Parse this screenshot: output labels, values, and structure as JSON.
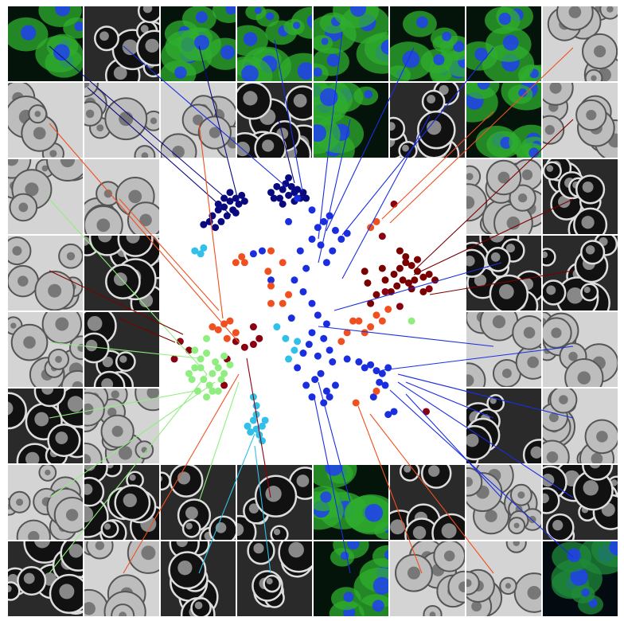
{
  "chart_data": {
    "type": "scatter",
    "xlim": [
      0,
      100
    ],
    "ylim": [
      0,
      100
    ],
    "series": [
      {
        "color": "#0a0a80",
        "x": [
          16,
          18,
          20,
          22,
          24,
          23,
          19,
          21,
          25,
          26,
          17,
          15,
          22,
          20,
          24,
          27,
          13,
          18,
          36,
          38,
          40,
          42,
          44,
          46,
          41,
          39,
          43,
          45,
          47,
          37,
          40,
          44,
          48,
          42
        ],
        "values": [
          82,
          84,
          85,
          87,
          88,
          84,
          80,
          82,
          86,
          89,
          78,
          80,
          90,
          88,
          83,
          87,
          79,
          86,
          90,
          92,
          91,
          89,
          90,
          88,
          93,
          88,
          92,
          91,
          90,
          88,
          86,
          87,
          88,
          95
        ]
      },
      {
        "color": "#1a2ee0",
        "x": [
          45,
          50,
          52,
          54,
          56,
          58,
          50,
          53,
          57,
          60,
          62,
          55,
          48,
          46,
          44,
          47,
          50,
          52,
          55,
          50,
          54,
          49,
          56,
          52,
          57,
          53,
          55,
          51,
          58,
          54,
          50,
          56,
          48,
          45,
          47,
          43,
          62,
          66,
          68,
          70,
          72,
          74,
          76,
          73,
          75,
          71,
          76,
          78,
          36,
          33,
          30,
          42
        ],
        "values": [
          88,
          84,
          78,
          80,
          82,
          77,
          74,
          72,
          70,
          74,
          76,
          66,
          64,
          70,
          60,
          56,
          52,
          48,
          45,
          42,
          40,
          38,
          36,
          34,
          32,
          28,
          22,
          26,
          24,
          18,
          20,
          20,
          24,
          30,
          35,
          47,
          33,
          32,
          30,
          31,
          29,
          28,
          30,
          25,
          24,
          20,
          14,
          15,
          60,
          70,
          69,
          80
        ]
      },
      {
        "color": "#7a0000",
        "x": [
          78,
          80,
          82,
          84,
          86,
          88,
          81,
          83,
          85,
          79,
          77,
          82,
          86,
          90,
          92,
          75,
          72,
          70,
          84,
          80,
          74,
          88,
          68,
          69
        ],
        "values": [
          62,
          64,
          66,
          65,
          63,
          61,
          60,
          59,
          60,
          58,
          56,
          68,
          67,
          62,
          60,
          60,
          55,
          52,
          57,
          70,
          64,
          56,
          63,
          59
        ]
      },
      {
        "color": "#f05020",
        "x": [
          18,
          20,
          22,
          24,
          16,
          21,
          35,
          27,
          24,
          26,
          36,
          40,
          36,
          42,
          40,
          70,
          72,
          68,
          66,
          72,
          76,
          70,
          62,
          64,
          74,
          60,
          72,
          65,
          36
        ],
        "values": [
          43,
          45,
          46,
          42,
          44,
          40,
          63,
          66,
          66,
          68,
          70,
          66,
          58,
          55,
          52,
          78,
          80,
          42,
          46,
          48,
          50,
          44,
          42,
          46,
          46,
          39,
          22,
          18,
          52
        ]
      },
      {
        "color": "#8b0010",
        "x": [
          5,
          8,
          3,
          20,
          27,
          30,
          24,
          32,
          75,
          90,
          80,
          21,
          89,
          74,
          78,
          30
        ],
        "values": [
          39,
          36,
          33,
          24,
          37,
          44,
          39,
          40,
          56,
          57,
          51,
          33,
          15,
          75,
          86,
          38
        ]
      },
      {
        "color": "#90ee80",
        "x": [
          10,
          12,
          14,
          16,
          18,
          13,
          11,
          15,
          17,
          19,
          20,
          8,
          12,
          14,
          16,
          22,
          10,
          14,
          20,
          18,
          9,
          84
        ],
        "values": [
          30,
          33,
          35,
          28,
          30,
          26,
          22,
          24,
          32,
          26,
          28,
          28,
          30,
          20,
          22,
          31,
          36,
          40,
          34,
          22,
          26,
          46
        ]
      },
      {
        "color": "#30c0e8",
        "x": [
          29,
          31,
          33,
          30,
          32,
          34,
          28,
          31,
          33,
          30,
          31,
          12,
          10,
          13,
          41,
          44,
          45,
          38,
          42
        ],
        "values": [
          8,
          9,
          10,
          12,
          7,
          12,
          10,
          14,
          5,
          20,
          17,
          69,
          70,
          71,
          40,
          36,
          39,
          44,
          33
        ]
      }
    ]
  }
}
